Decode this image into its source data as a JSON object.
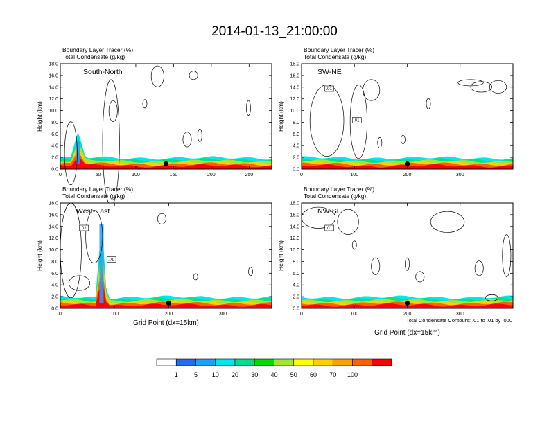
{
  "title": "2014-01-13_21:00:00",
  "colors": {
    "palette": [
      "#ffffff",
      "#1e6ff0",
      "#1ea0ff",
      "#00e6f0",
      "#00e08c",
      "#00dc00",
      "#a0e632",
      "#ffff00",
      "#ffd000",
      "#ffa000",
      "#ff6000",
      "#ff0000"
    ]
  },
  "colorbar": {
    "labels": [
      "1",
      "5",
      "10",
      "20",
      "30",
      "40",
      "50",
      "60",
      "70",
      "100"
    ]
  },
  "footnote": "Total Condensate Contours: .01 to .01 by .000",
  "chart_data": [
    {
      "type": "heatmap",
      "cross_section": "South-North",
      "title_lines": [
        "Boundary Layer Tracer    (%)",
        "Total Condensate    (g/kg)"
      ],
      "xlabel": "",
      "ylabel": "Height (km)",
      "xlim": [
        0,
        280
      ],
      "ylim": [
        0,
        18
      ],
      "x_ticks": [
        "0",
        "50",
        "100",
        "150",
        "200",
        "250"
      ],
      "y_ticks": [
        "0.0",
        "2.0",
        "4.0",
        "6.0",
        "8.0",
        "10.0",
        "12.0",
        "14.0",
        "16.0",
        "18.0"
      ],
      "marker_x": 140,
      "contour_labels": []
    },
    {
      "type": "heatmap",
      "cross_section": "SW-NE",
      "title_lines": [
        "Boundary Layer Tracer    (%)",
        "Total Condensate    (g/kg)"
      ],
      "xlabel": "",
      "ylabel": "Height (km)",
      "xlim": [
        0,
        400
      ],
      "ylim": [
        0,
        18
      ],
      "x_ticks": [
        "0",
        "100",
        "200",
        "300"
      ],
      "y_ticks": [
        "0.0",
        "2.0",
        "4.0",
        "6.0",
        "8.0",
        "10.0",
        "12.0",
        "14.0",
        "16.0",
        "18.0"
      ],
      "marker_x": 200,
      "contour_labels": [
        ".01",
        ".01"
      ]
    },
    {
      "type": "heatmap",
      "cross_section": "West-East",
      "title_lines": [
        "Boundary Layer Tracer    (%)",
        "Total Condensate    (g/kg)"
      ],
      "xlabel": "Grid Point (dx=15km)",
      "ylabel": "Height (km)",
      "xlim": [
        0,
        390
      ],
      "ylim": [
        0,
        18
      ],
      "x_ticks": [
        "0",
        "100",
        "200",
        "300"
      ],
      "y_ticks": [
        "0.0",
        "2.0",
        "4.0",
        "6.0",
        "8.0",
        "10.0",
        "12.0",
        "14.0",
        "16.0",
        "18.0"
      ],
      "marker_x": 200,
      "contour_labels": [
        ".01",
        ".01"
      ]
    },
    {
      "type": "heatmap",
      "cross_section": "NW-SE",
      "title_lines": [
        "Boundary Layer Tracer    (%)",
        "Total Condensate    (g/kg)"
      ],
      "xlabel": "Grid Point (dx=15km)",
      "ylabel": "Height (km)",
      "xlim": [
        0,
        400
      ],
      "ylim": [
        0,
        18
      ],
      "x_ticks": [
        "0",
        "100",
        "200",
        "300"
      ],
      "y_ticks": [
        "0.0",
        "2.0",
        "4.0",
        "6.0",
        "8.0",
        "10.0",
        "12.0",
        "14.0",
        "16.0",
        "18.0"
      ],
      "marker_x": 200,
      "contour_labels": [
        ".01"
      ]
    }
  ]
}
